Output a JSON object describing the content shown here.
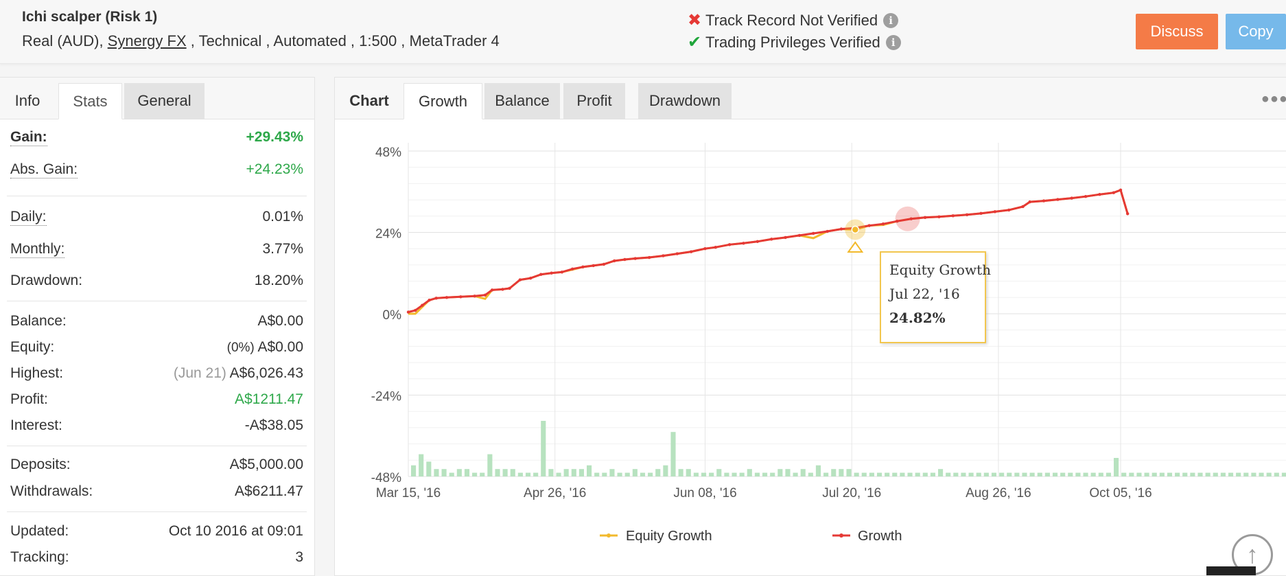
{
  "header": {
    "system_name": "Ichi scalper (Risk 1)",
    "desc_prefix": "Real (AUD), ",
    "broker": "Synergy FX",
    "desc_suffix": " , Technical , Automated , 1:500 , MetaTrader 4",
    "track_record": "Track Record Not Verified",
    "privileges": "Trading Privileges Verified",
    "discuss_label": "Discuss",
    "copy_label": "Copy"
  },
  "left_tabs": [
    "Info",
    "Stats",
    "General"
  ],
  "stats": {
    "gain_label": "Gain:",
    "gain": "+29.43%",
    "abs_gain_label": "Abs. Gain:",
    "abs_gain": "+24.23%",
    "daily_label": "Daily:",
    "daily": "0.01%",
    "monthly_label": "Monthly:",
    "monthly": "3.77%",
    "drawdown_label": "Drawdown:",
    "drawdown": "18.20%",
    "balance_label": "Balance:",
    "balance": "A$0.00",
    "equity_label": "Equity:",
    "equity_pct": "(0%)",
    "equity": "A$0.00",
    "highest_label": "Highest:",
    "highest_date": "(Jun 21)",
    "highest": "A$6,026.43",
    "profit_label": "Profit:",
    "profit": "A$1211.47",
    "interest_label": "Interest:",
    "interest": "-A$38.05",
    "deposits_label": "Deposits:",
    "deposits": "A$5,000.00",
    "withdrawals_label": "Withdrawals:",
    "withdrawals": "A$6211.47",
    "updated_label": "Updated:",
    "updated": "Oct 10 2016 at 09:01",
    "tracking_label": "Tracking:",
    "tracking": "3"
  },
  "chart_tabs": [
    "Chart",
    "Growth",
    "Balance",
    "Profit",
    "Drawdown"
  ],
  "tooltip": {
    "series": "Equity Growth",
    "date": "Jul 22, '16",
    "value": "24.82%"
  },
  "colors": {
    "growth": "#e53935",
    "equity": "#f2b92c",
    "volume": "#b7e2bf",
    "discuss": "#f47b47",
    "copy": "#76b9ea",
    "green": "#2ea84a"
  },
  "chart_data": {
    "type": "line",
    "y_ticks": [
      "48%",
      "24%",
      "0%",
      "-24%",
      "-48%"
    ],
    "ylim": [
      -48,
      48
    ],
    "x_ticks": [
      "Mar 15, '16",
      "Apr 26, '16",
      "Jun 08, '16",
      "Jul 20, '16",
      "Aug 26, '16",
      "Oct 05, '16"
    ],
    "x_range_days": [
      0,
      206
    ],
    "x_tick_days": [
      0,
      42,
      85,
      127,
      169,
      204
    ],
    "legend": [
      "Equity Growth",
      "Growth"
    ],
    "series": [
      {
        "name": "Growth",
        "points": [
          [
            0,
            0.5
          ],
          [
            2,
            1
          ],
          [
            4,
            2.5
          ],
          [
            6,
            4
          ],
          [
            8,
            4.6
          ],
          [
            11,
            4.8
          ],
          [
            15,
            5
          ],
          [
            19,
            5.2
          ],
          [
            22,
            5.5
          ],
          [
            24,
            7
          ],
          [
            27,
            7.2
          ],
          [
            29,
            7.5
          ],
          [
            32,
            10
          ],
          [
            35,
            10.5
          ],
          [
            38,
            11.6
          ],
          [
            41,
            12
          ],
          [
            44,
            12.3
          ],
          [
            47,
            13.2
          ],
          [
            50,
            13.8
          ],
          [
            53,
            14.2
          ],
          [
            56,
            14.6
          ],
          [
            59,
            15.6
          ],
          [
            62,
            16
          ],
          [
            65,
            16.3
          ],
          [
            69,
            16.6
          ],
          [
            73,
            17.1
          ],
          [
            77,
            17.7
          ],
          [
            81,
            18.3
          ],
          [
            85,
            19.2
          ],
          [
            88,
            19.6
          ],
          [
            92,
            20.4
          ],
          [
            96,
            20.8
          ],
          [
            100,
            21.3
          ],
          [
            104,
            22
          ],
          [
            108,
            22.5
          ],
          [
            112,
            23.1
          ],
          [
            116,
            23.7
          ],
          [
            120,
            24.3
          ],
          [
            124,
            25
          ],
          [
            128,
            25.3
          ],
          [
            132,
            26
          ],
          [
            136,
            26.5
          ],
          [
            140,
            27.3
          ],
          [
            144,
            28
          ],
          [
            148,
            28.4
          ],
          [
            152,
            28.6
          ],
          [
            156,
            28.9
          ],
          [
            160,
            29.2
          ],
          [
            164,
            29.6
          ],
          [
            168,
            30.1
          ],
          [
            172,
            30.6
          ],
          [
            176,
            31.6
          ],
          [
            178,
            33
          ],
          [
            182,
            33.3
          ],
          [
            186,
            33.7
          ],
          [
            190,
            34.1
          ],
          [
            194,
            34.6
          ],
          [
            198,
            35.2
          ],
          [
            202,
            35.7
          ],
          [
            204,
            36.5
          ],
          [
            206,
            29.5
          ]
        ]
      },
      {
        "name": "Equity Growth",
        "points": [
          [
            0,
            0
          ],
          [
            2,
            0
          ],
          [
            4,
            2
          ],
          [
            6,
            4
          ],
          [
            8,
            4.6
          ],
          [
            11,
            4.8
          ],
          [
            15,
            5
          ],
          [
            19,
            5.2
          ],
          [
            22,
            4.4
          ],
          [
            24,
            7
          ],
          [
            27,
            7.2
          ],
          [
            29,
            7.5
          ],
          [
            32,
            10
          ],
          [
            35,
            10.5
          ],
          [
            38,
            11.6
          ],
          [
            41,
            12
          ],
          [
            44,
            12.3
          ],
          [
            47,
            13
          ],
          [
            50,
            13.8
          ],
          [
            53,
            14.2
          ],
          [
            56,
            14.6
          ],
          [
            59,
            15.6
          ],
          [
            62,
            16
          ],
          [
            65,
            16.3
          ],
          [
            69,
            16.6
          ],
          [
            73,
            17.1
          ],
          [
            77,
            17.7
          ],
          [
            81,
            18.3
          ],
          [
            85,
            19.2
          ],
          [
            88,
            19.6
          ],
          [
            92,
            20.4
          ],
          [
            96,
            20.8
          ],
          [
            100,
            21.3
          ],
          [
            104,
            22
          ],
          [
            108,
            22.5
          ],
          [
            112,
            23.1
          ],
          [
            116,
            22.3
          ],
          [
            120,
            24.3
          ],
          [
            124,
            25
          ],
          [
            128,
            24.82
          ],
          [
            132,
            26
          ],
          [
            136,
            26.2
          ],
          [
            140,
            27.3
          ],
          [
            144,
            28
          ],
          [
            148,
            28.4
          ],
          [
            152,
            28.6
          ],
          [
            156,
            28.9
          ],
          [
            160,
            29.2
          ],
          [
            164,
            29.6
          ],
          [
            168,
            30.1
          ],
          [
            172,
            30.6
          ],
          [
            176,
            31.6
          ],
          [
            178,
            33
          ],
          [
            182,
            33.3
          ],
          [
            186,
            33.7
          ],
          [
            190,
            34.1
          ],
          [
            194,
            34.6
          ],
          [
            198,
            35.2
          ],
          [
            202,
            35.7
          ],
          [
            204,
            36.5
          ],
          [
            206,
            29.5
          ]
        ]
      }
    ],
    "volume_bars": [
      3,
      6,
      4,
      2,
      2,
      1,
      2,
      2,
      1,
      1,
      6,
      2,
      2,
      2,
      1,
      1,
      1,
      15,
      2,
      1,
      2,
      2,
      2,
      3,
      1,
      1,
      2,
      1,
      1,
      2,
      1,
      1,
      2,
      3,
      12,
      2,
      2,
      1,
      1,
      1,
      2,
      1,
      1,
      1,
      2,
      1,
      1,
      1,
      2,
      2,
      1,
      2,
      1,
      3,
      1,
      2,
      2,
      2,
      1,
      1,
      1,
      1,
      1,
      1,
      1,
      1,
      1,
      1,
      1,
      2,
      1,
      1,
      1,
      1,
      1,
      1,
      1,
      1,
      1,
      1,
      1,
      1,
      1,
      1,
      1,
      1,
      1,
      1,
      1,
      1,
      1,
      1,
      5,
      1,
      1,
      1,
      1,
      1,
      1,
      1,
      1,
      1,
      1,
      1,
      1,
      1,
      1,
      1,
      1,
      1,
      1,
      1,
      1,
      1,
      1
    ]
  }
}
